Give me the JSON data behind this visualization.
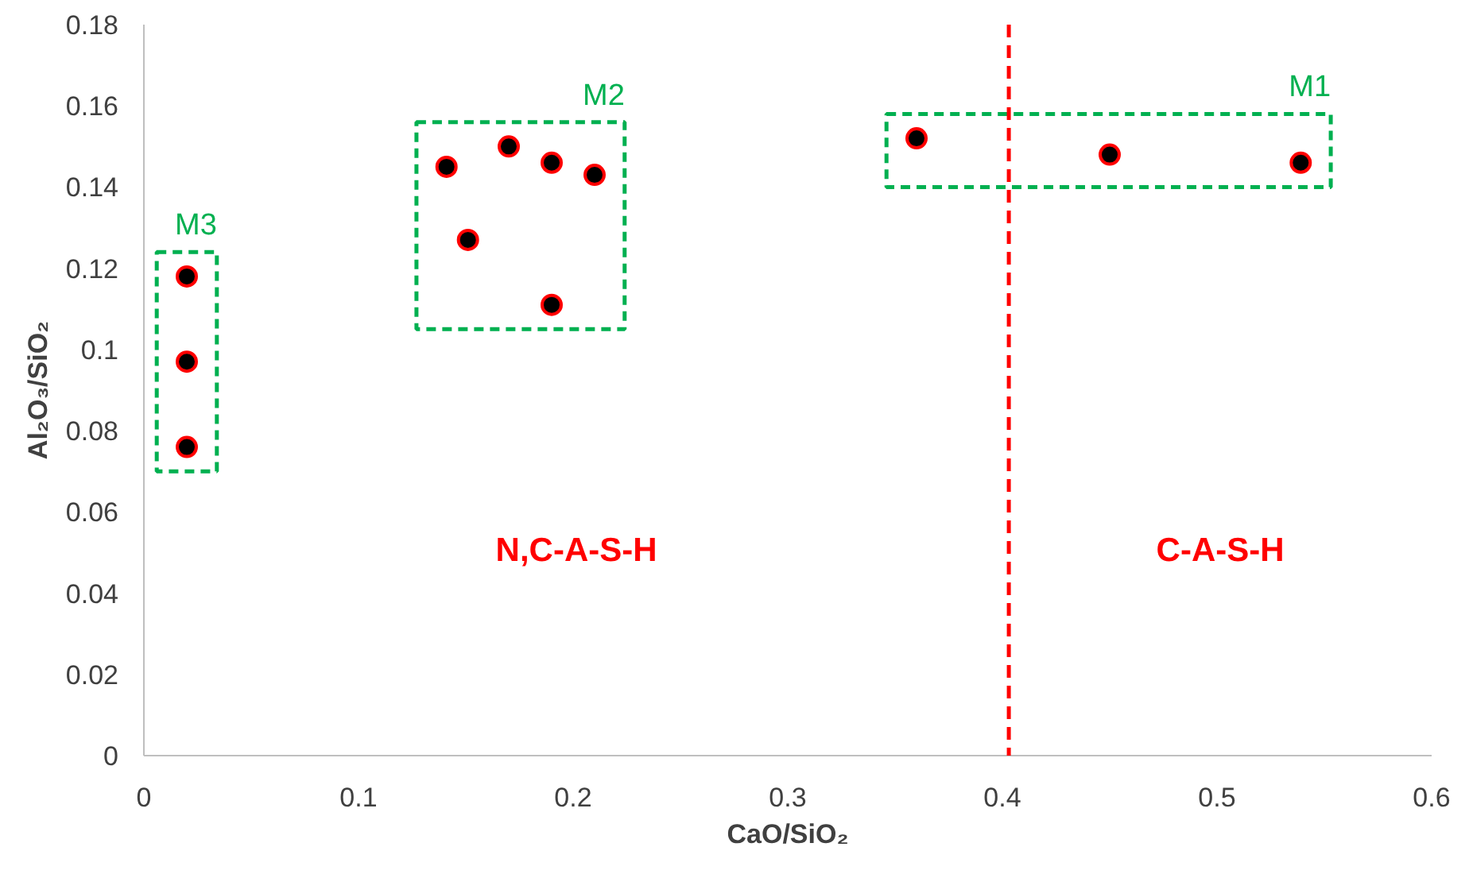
{
  "chart_data": {
    "type": "scatter",
    "xlabel": "CaO/SiO₂",
    "ylabel": "Al₂O₃/SiO₂",
    "xlim": [
      0,
      0.6
    ],
    "ylim": [
      0,
      0.18
    ],
    "xticks": [
      0,
      0.1,
      0.2,
      0.3,
      0.4,
      0.5,
      0.6
    ],
    "yticks": [
      0,
      0.02,
      0.04,
      0.06,
      0.08,
      0.1,
      0.12,
      0.14,
      0.16,
      0.18
    ],
    "grid": false,
    "marker": "circle",
    "series": [
      {
        "name": "M1",
        "color": "#000000",
        "x": [
          0.36,
          0.45,
          0.539
        ],
        "values": [
          0.152,
          0.148,
          0.146
        ]
      },
      {
        "name": "M2",
        "color": "#000000",
        "x": [
          0.141,
          0.17,
          0.19,
          0.21,
          0.151,
          0.19
        ],
        "values": [
          0.145,
          0.15,
          0.146,
          0.143,
          0.127,
          0.111
        ]
      },
      {
        "name": "M3",
        "color": "#000000",
        "x": [
          0.02,
          0.02,
          0.02
        ],
        "values": [
          0.118,
          0.097,
          0.076
        ]
      }
    ],
    "ref_lines": [
      {
        "axis": "x",
        "value": 0.403,
        "color": "#ff0000",
        "line_style": "dashed"
      }
    ],
    "annotations": [
      "N,C-A-S-H",
      "C-A-S-H"
    ]
  }
}
